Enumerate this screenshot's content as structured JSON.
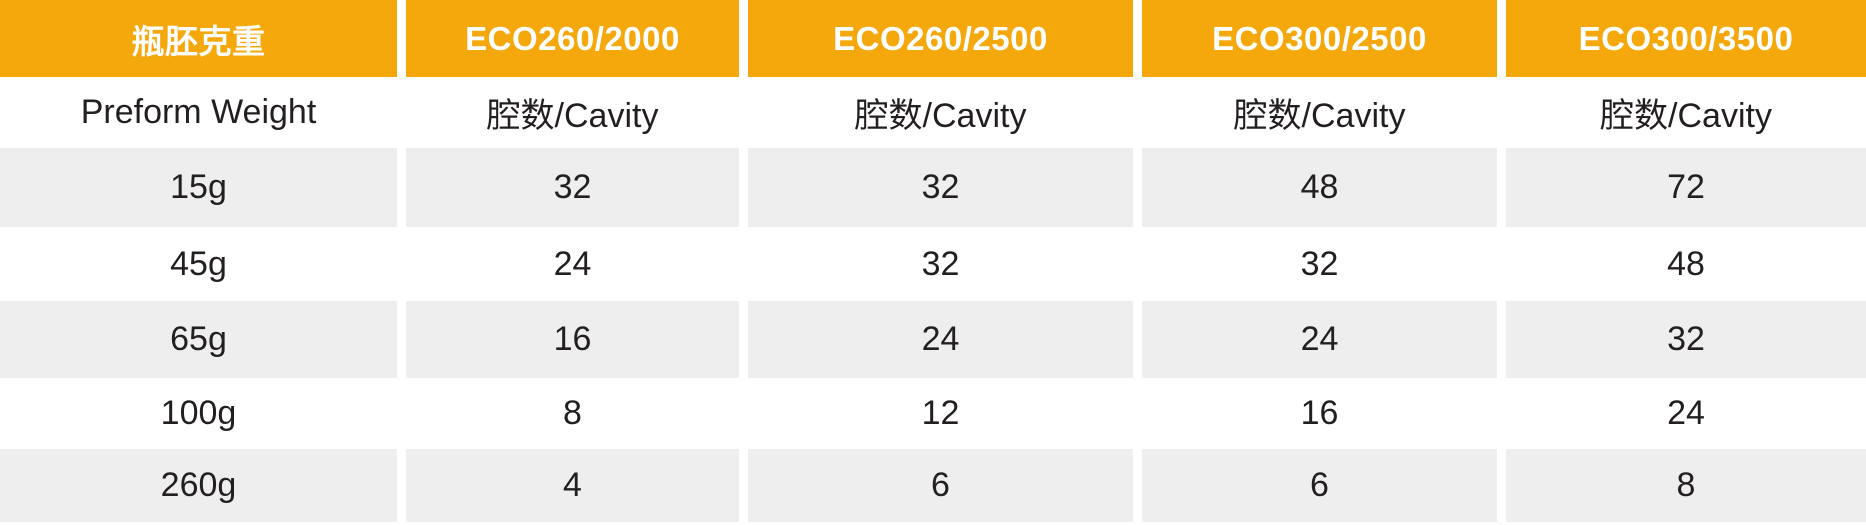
{
  "colors": {
    "accent_orange": "#F5A80C",
    "alt_row_gray": "#EEEEEE",
    "header_text": "#FFFFFF",
    "body_text": "#231F20"
  },
  "table": {
    "header": [
      "瓶胚克重",
      "ECO260/2000",
      "ECO260/2500",
      "ECO300/2500",
      "ECO300/3500"
    ],
    "subheader": [
      "Preform Weight",
      "腔数/Cavity",
      "腔数/Cavity",
      "腔数/Cavity",
      "腔数/Cavity"
    ],
    "rows": [
      [
        "15g",
        "32",
        "32",
        "48",
        "72"
      ],
      [
        "45g",
        "24",
        "32",
        "32",
        "48"
      ],
      [
        "65g",
        "16",
        "24",
        "24",
        "32"
      ],
      [
        "100g",
        "8",
        "12",
        "16",
        "24"
      ],
      [
        "260g",
        "4",
        "6",
        "6",
        "8"
      ]
    ]
  },
  "chart_data": {
    "type": "table",
    "title": "瓶胚克重 / Preform Weight — 腔数/Cavity per machine model",
    "columns": [
      "瓶胚克重 Preform Weight",
      "ECO260/2000 腔数/Cavity",
      "ECO260/2500 腔数/Cavity",
      "ECO300/2500 腔数/Cavity",
      "ECO300/3500 腔数/Cavity"
    ],
    "rows": [
      {
        "preform_weight": "15g",
        "ECO260_2000": 32,
        "ECO260_2500": 32,
        "ECO300_2500": 48,
        "ECO300_3500": 72
      },
      {
        "preform_weight": "45g",
        "ECO260_2000": 24,
        "ECO260_2500": 32,
        "ECO300_2500": 32,
        "ECO300_3500": 48
      },
      {
        "preform_weight": "65g",
        "ECO260_2000": 16,
        "ECO260_2500": 24,
        "ECO300_2500": 24,
        "ECO300_3500": 32
      },
      {
        "preform_weight": "100g",
        "ECO260_2000": 8,
        "ECO260_2500": 12,
        "ECO300_2500": 16,
        "ECO300_3500": 24
      },
      {
        "preform_weight": "260g",
        "ECO260_2000": 4,
        "ECO260_2500": 6,
        "ECO300_2500": 6,
        "ECO300_3500": 8
      }
    ],
    "layout": "header row amber with white bold text; subheader row white; data rows alternate light-gray/white; all cells center-aligned; white gutters between columns"
  }
}
